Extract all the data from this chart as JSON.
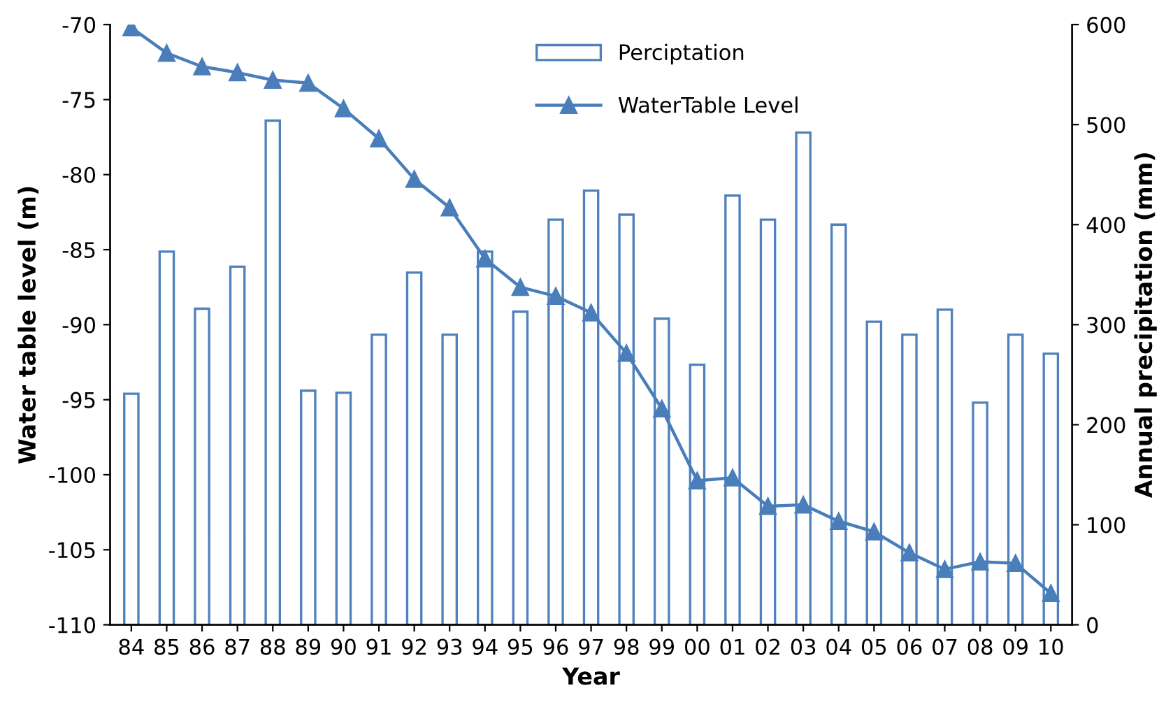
{
  "chart_data": {
    "type": "bar",
    "xlabel": "Year",
    "ylabel": "Water table level (m)",
    "y2label": "Annual precipitation (mm)",
    "categories": [
      "84",
      "85",
      "86",
      "87",
      "88",
      "89",
      "90",
      "91",
      "92",
      "93",
      "94",
      "95",
      "96",
      "97",
      "98",
      "99",
      "00",
      "01",
      "02",
      "03",
      "04",
      "05",
      "06",
      "07",
      "08",
      "09",
      "10"
    ],
    "series": [
      {
        "name": "Perciptation",
        "axis": "y2",
        "color": "#4f81bd",
        "values": [
          231,
          373,
          316,
          358,
          504,
          234,
          232,
          290,
          352,
          290,
          373,
          313,
          405,
          434,
          410,
          306,
          260,
          429,
          405,
          492,
          400,
          303,
          290,
          315,
          222,
          290,
          271
        ]
      },
      {
        "name": "WaterTable Level",
        "type": "line",
        "axis": "y",
        "color": "#4a7ebb",
        "marker": "triangle",
        "line_style": "solid",
        "values": [
          -70.2,
          -71.9,
          -72.8,
          -73.2,
          -73.7,
          -73.9,
          -75.6,
          -77.6,
          -80.3,
          -82.2,
          -85.6,
          -87.5,
          -88.1,
          -89.2,
          -91.9,
          -95.6,
          -100.4,
          -100.2,
          -102.1,
          -102.0,
          -103.1,
          -103.8,
          -105.2,
          -106.3,
          -105.8,
          -105.9,
          -107.9
        ]
      }
    ],
    "ylim": [
      -110,
      -70
    ],
    "yticks": [
      -110,
      -105,
      -100,
      -95,
      -90,
      -85,
      -80,
      -75,
      -70
    ],
    "y2lim": [
      0,
      600
    ],
    "y2ticks": [
      0,
      100,
      200,
      300,
      400,
      500,
      600
    ],
    "grid": false,
    "legend": "top"
  }
}
